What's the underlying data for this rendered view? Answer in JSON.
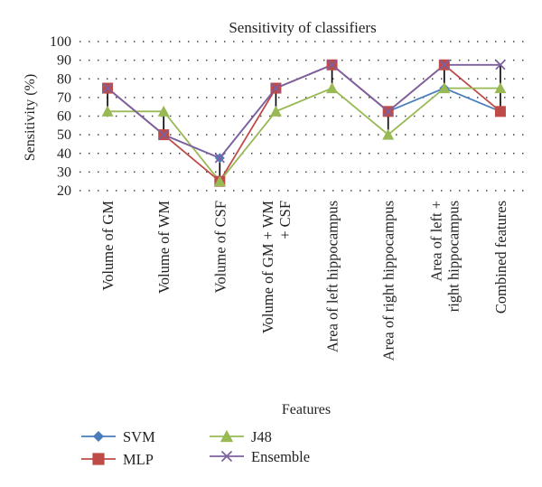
{
  "chart_data": {
    "type": "line",
    "title": "Sensitivity of classifiers",
    "xlabel": "Features",
    "ylabel": "Sensitivity (%)",
    "ylim": [
      20,
      100
    ],
    "yticks": [
      "20",
      "30",
      "40",
      "50",
      "60",
      "70",
      "80",
      "90",
      "100"
    ],
    "grid": "dotted horizontal",
    "legend_position": "bottom",
    "categories": [
      [
        "Volume of GM"
      ],
      [
        "Volume of WM"
      ],
      [
        "Volume of CSF"
      ],
      [
        "Volume of GM + WM",
        "+ CSF"
      ],
      [
        "Area of left hippocampus"
      ],
      [
        "Area of right hippocampus"
      ],
      [
        "Area of left +",
        "right hippocampus"
      ],
      [
        "Combined features"
      ]
    ],
    "series": [
      {
        "name": "SVM",
        "color": "#4a7ebb",
        "marker": "diamond",
        "values": [
          75,
          50,
          37.5,
          75,
          87.5,
          62.5,
          75,
          62.5
        ]
      },
      {
        "name": "MLP",
        "color": "#be4b48",
        "marker": "square",
        "values": [
          75,
          50,
          25,
          75,
          87.5,
          62.5,
          87.5,
          62.5
        ]
      },
      {
        "name": "J48",
        "color": "#98b954",
        "marker": "triangle",
        "values": [
          62.5,
          62.5,
          25,
          62.5,
          75,
          50,
          75,
          75
        ]
      },
      {
        "name": "Ensemble",
        "color": "#7d60a0",
        "marker": "x",
        "values": [
          75,
          50,
          37.5,
          75,
          87.5,
          62.5,
          87.5,
          87.5
        ]
      }
    ],
    "error_bars": "black vertical bars spanning min to max per category"
  }
}
